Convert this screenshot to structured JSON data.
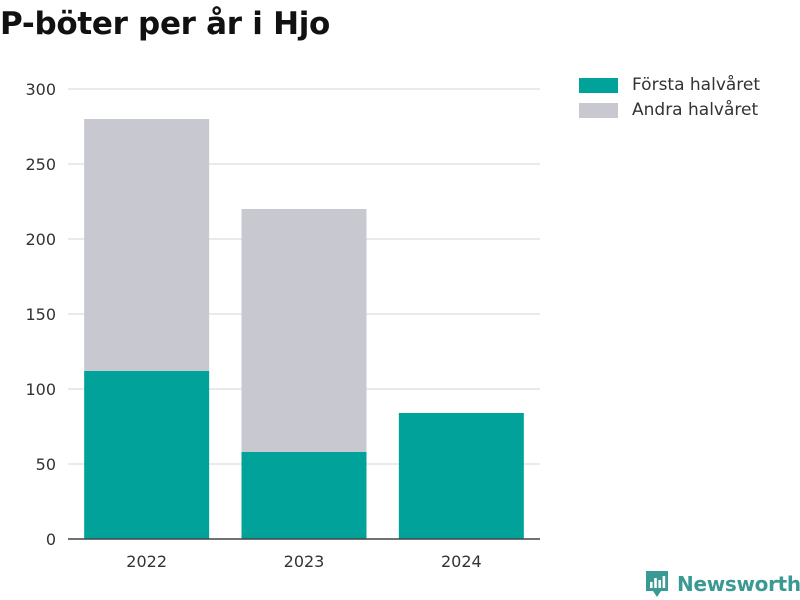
{
  "colors": {
    "first_half": "#00a29a",
    "second_half": "#c8c8d0",
    "brand": "#3a9a93"
  },
  "chart_data": {
    "type": "bar",
    "stacked": true,
    "title": "P-böter per år i Hjo",
    "xlabel": "",
    "ylabel": "",
    "categories": [
      "2022",
      "2023",
      "2024"
    ],
    "series": [
      {
        "name": "Första halvåret",
        "values": [
          112,
          58,
          84
        ]
      },
      {
        "name": "Andra halvåret",
        "values": [
          168,
          162,
          0
        ]
      }
    ],
    "ylim": [
      0,
      300
    ],
    "yticks": [
      0,
      50,
      100,
      150,
      200,
      250,
      300
    ],
    "grid": true,
    "legend": "top-right"
  },
  "legend": {
    "items": [
      {
        "label": "Första halvåret",
        "icon": "color-swatch"
      },
      {
        "label": "Andra halvåret",
        "icon": "color-swatch"
      }
    ]
  },
  "brand": {
    "name": "Newsworthy",
    "icon": "newsworthy-logo-icon"
  }
}
